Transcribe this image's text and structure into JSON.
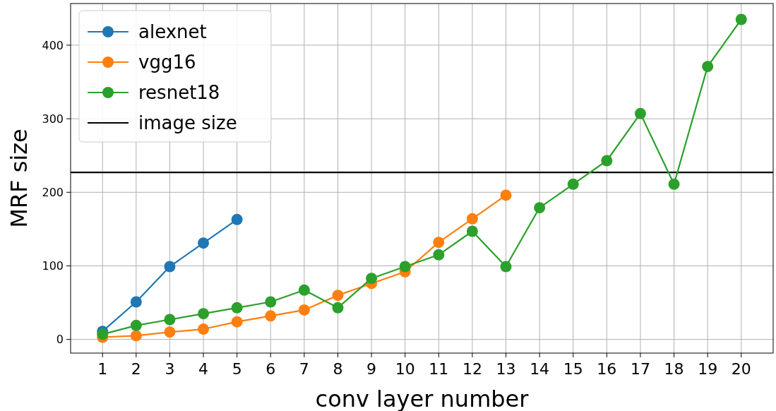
{
  "chart_data": {
    "type": "line",
    "xlabel": "conv layer number",
    "ylabel": "MRF size",
    "xlim": [
      0.05,
      20.95
    ],
    "xticks": [
      1,
      2,
      3,
      4,
      5,
      6,
      7,
      8,
      9,
      10,
      11,
      12,
      13,
      14,
      15,
      16,
      17,
      18,
      19,
      20
    ],
    "ylim": [
      -18.6,
      456.6
    ],
    "yticks": [
      0,
      100,
      200,
      300,
      400
    ],
    "series": [
      {
        "name": "alexnet",
        "color": "#1f77b4",
        "x": [
          1,
          2,
          3,
          4,
          5
        ],
        "values": [
          11,
          51,
          99,
          131,
          163
        ]
      },
      {
        "name": "vgg16",
        "color": "#ff7f0e",
        "x": [
          1,
          2,
          3,
          4,
          5,
          6,
          7,
          8,
          9,
          10,
          11,
          12,
          13
        ],
        "values": [
          3,
          5,
          10,
          14,
          24,
          32,
          40,
          60,
          76,
          92,
          132,
          164,
          196
        ]
      },
      {
        "name": "resnet18",
        "color": "#2ca02c",
        "x": [
          1,
          2,
          3,
          4,
          5,
          6,
          7,
          8,
          9,
          10,
          11,
          12,
          13,
          14,
          15,
          16,
          17,
          18,
          19,
          20
        ],
        "values": [
          7,
          19,
          27,
          35,
          43,
          51,
          67,
          43,
          83,
          99,
          115,
          147,
          99,
          179,
          211,
          243,
          307,
          211,
          371,
          435
        ]
      }
    ],
    "ref_lines": [
      {
        "axis": "y",
        "value": 227,
        "label": "image size",
        "color": "#000000"
      }
    ],
    "grid": true,
    "legend": "top left",
    "marker": "circle",
    "line_style": "solid"
  }
}
